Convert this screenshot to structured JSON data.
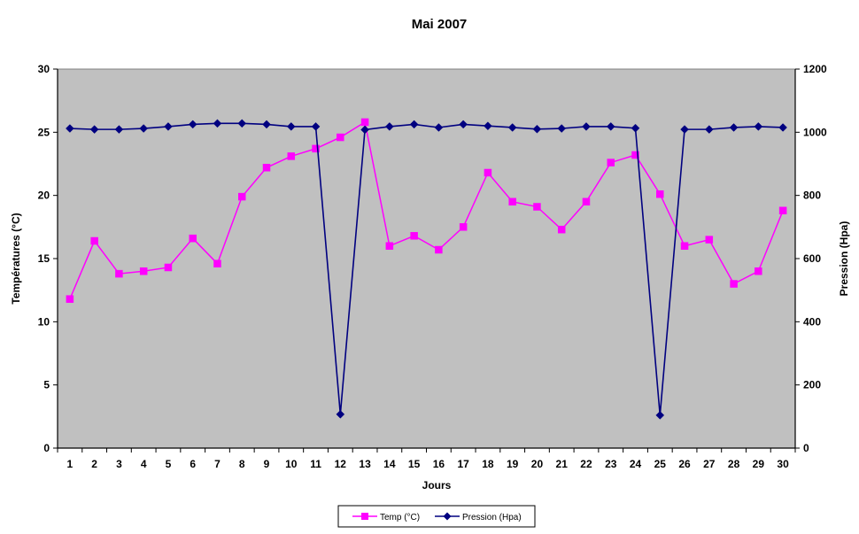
{
  "chart_data": {
    "type": "line",
    "title": "Mai 2007",
    "xlabel": "Jours",
    "ylabel": "Températures (°C)",
    "y2label": "Pression (Hpa)",
    "categories": [
      1,
      2,
      3,
      4,
      5,
      6,
      7,
      8,
      9,
      10,
      11,
      12,
      13,
      14,
      15,
      16,
      17,
      18,
      19,
      20,
      21,
      22,
      23,
      24,
      25,
      26,
      27,
      28,
      29,
      30
    ],
    "ylim": [
      0,
      30
    ],
    "y2lim": [
      0,
      1200
    ],
    "yticks": [
      0,
      5,
      10,
      15,
      20,
      25,
      30
    ],
    "y2ticks": [
      0,
      200,
      400,
      600,
      800,
      1000,
      1200
    ],
    "grid": false,
    "legend_position": "bottom",
    "plot_background": "#c0c0c0",
    "series": [
      {
        "name": "Temp (°C)",
        "axis": "left",
        "color": "#ff00ff",
        "marker": "square",
        "values": [
          11.8,
          16.4,
          13.8,
          14.0,
          14.3,
          16.6,
          14.6,
          19.9,
          22.2,
          23.1,
          23.7,
          24.6,
          25.8,
          16.0,
          16.8,
          15.7,
          17.5,
          21.8,
          19.5,
          19.1,
          17.3,
          19.5,
          22.6,
          23.2,
          20.1,
          16.0,
          16.5,
          13.0,
          14.0,
          18.8
        ]
      },
      {
        "name": "Pression (Hpa)",
        "axis": "right",
        "color": "#000080",
        "marker": "diamond",
        "values": [
          1012,
          1009,
          1009,
          1012,
          1018,
          1025,
          1028,
          1028,
          1025,
          1018,
          1018,
          107,
          1008,
          1018,
          1025,
          1015,
          1025,
          1020,
          1015,
          1010,
          1012,
          1018,
          1018,
          1013,
          104,
          1009,
          1009,
          1015,
          1018,
          1015
        ]
      }
    ]
  }
}
